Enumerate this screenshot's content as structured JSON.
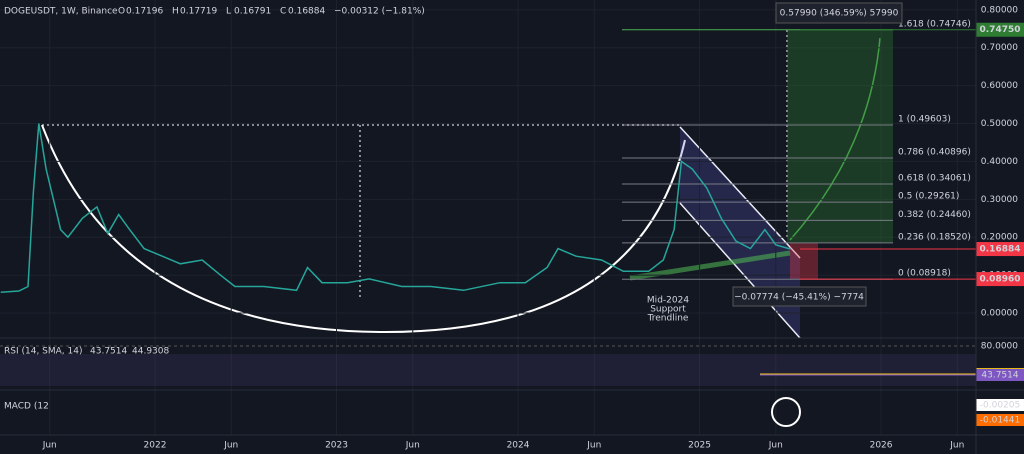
{
  "chart_data": {
    "type": "line",
    "title": "DOGEUSDT, 1W, Binance",
    "ohlc": [
      {
        "key": "O",
        "value": 0.17196
      },
      {
        "key": "H",
        "value": 0.17719
      },
      {
        "key": "L",
        "value": 0.16791
      },
      {
        "key": "C",
        "value": 0.16884
      }
    ],
    "change": "−0.00312 (−1.81%)",
    "color": "#26a69a",
    "x": [
      2021.15,
      2021.25,
      2021.3,
      2021.33,
      2021.36,
      2021.4,
      2021.44,
      2021.48,
      2021.52,
      2021.6,
      2021.68,
      2021.74,
      2021.8,
      2021.86,
      2021.94,
      2022.04,
      2022.14,
      2022.26,
      2022.36,
      2022.44,
      2022.6,
      2022.78,
      2022.84,
      2022.92,
      2023.06,
      2023.18,
      2023.36,
      2023.52,
      2023.7,
      2023.9,
      2024.04,
      2024.16,
      2024.22,
      2024.32,
      2024.46,
      2024.58,
      2024.72,
      2024.8,
      2024.86,
      2024.9,
      2024.96,
      2025.04,
      2025.12,
      2025.2,
      2025.28,
      2025.36,
      2025.42,
      2025.5
    ],
    "values": [
      0.055,
      0.058,
      0.07,
      0.32,
      0.5,
      0.38,
      0.3,
      0.22,
      0.2,
      0.25,
      0.28,
      0.21,
      0.26,
      0.22,
      0.17,
      0.15,
      0.13,
      0.14,
      0.1,
      0.07,
      0.07,
      0.06,
      0.12,
      0.08,
      0.08,
      0.09,
      0.07,
      0.07,
      0.06,
      0.08,
      0.08,
      0.12,
      0.17,
      0.15,
      0.14,
      0.11,
      0.11,
      0.14,
      0.22,
      0.4,
      0.38,
      0.33,
      0.25,
      0.19,
      0.17,
      0.22,
      0.18,
      0.16884
    ],
    "xlim": [
      2021.146,
      2026.523
    ],
    "xticks": [
      {
        "value": 2021.42,
        "label": "Jun"
      },
      {
        "value": 2022,
        "label": "2022"
      },
      {
        "value": 2022.42,
        "label": "Jun"
      },
      {
        "value": 2023,
        "label": "2023"
      },
      {
        "value": 2023.42,
        "label": "Jun"
      },
      {
        "value": 2024,
        "label": "2024"
      },
      {
        "value": 2024.42,
        "label": "Jun"
      },
      {
        "value": 2025,
        "label": "2025"
      },
      {
        "value": 2025.42,
        "label": "Jun"
      },
      {
        "value": 2026,
        "label": "2026"
      },
      {
        "value": 2026.42,
        "label": "Jun"
      }
    ],
    "ylim": [
      -0.058,
      0.826
    ],
    "yticks": [
      {
        "value": 0,
        "label": "0.00000"
      },
      {
        "value": 0.1,
        "label": "0.10000"
      },
      {
        "value": 0.2,
        "label": "0.20000"
      },
      {
        "value": 0.3,
        "label": "0.30000"
      },
      {
        "value": 0.4,
        "label": "0.40000"
      },
      {
        "value": 0.5,
        "label": "0.50000"
      },
      {
        "value": 0.6,
        "label": "0.60000"
      },
      {
        "value": 0.7,
        "label": "0.70000"
      },
      {
        "value": 0.8,
        "label": "0.80000"
      }
    ],
    "fib_levels": [
      {
        "value": 0.74746,
        "label": "1.618 (0.74746)"
      },
      {
        "value": 0.49603,
        "label": "1 (0.49603)"
      },
      {
        "value": 0.40896,
        "label": "0.786 (0.40896)"
      },
      {
        "value": 0.34061,
        "label": "0.618 (0.34061)"
      },
      {
        "value": 0.29261,
        "label": "0.5 (0.29261)"
      },
      {
        "value": 0.2446,
        "label": "0.382 (0.24460)"
      },
      {
        "value": 0.1852,
        "label": "0.236 (0.18520)"
      },
      {
        "value": 0.08918,
        "label": "0 (0.08918)"
      }
    ],
    "price_badges": [
      {
        "value": 0.7475,
        "label": "0.74750",
        "color": "#2e7d32"
      },
      {
        "value": 0.16884,
        "label": "0.16884",
        "color": "#f23645"
      },
      {
        "value": 0.0896,
        "label": "0.08960",
        "color": "#f23645"
      }
    ],
    "measure_up": "0.57990 (346.59%) 57990",
    "measure_down": "−0.07774 (−45.41%) −7774",
    "support_note": [
      "Mid-2024",
      "Support",
      "Trendline"
    ],
    "rsi": {
      "label": "RSI (14, SMA, 14)",
      "value_labels": [
        "43.7514",
        "44.9308"
      ],
      "values": [
        43.7514,
        44.9308
      ],
      "tick": {
        "value": 80,
        "label": "80.0000"
      },
      "ylim": [
        28.75,
        87.5
      ],
      "color": "#7e57c2",
      "sma_color": "#f0c419"
    },
    "macd": {
      "label": "MACD (12",
      "values": [
        -0.00205,
        -0.01441
      ],
      "value_labels": [
        "-0.00205",
        "-0.01441"
      ]
    }
  }
}
